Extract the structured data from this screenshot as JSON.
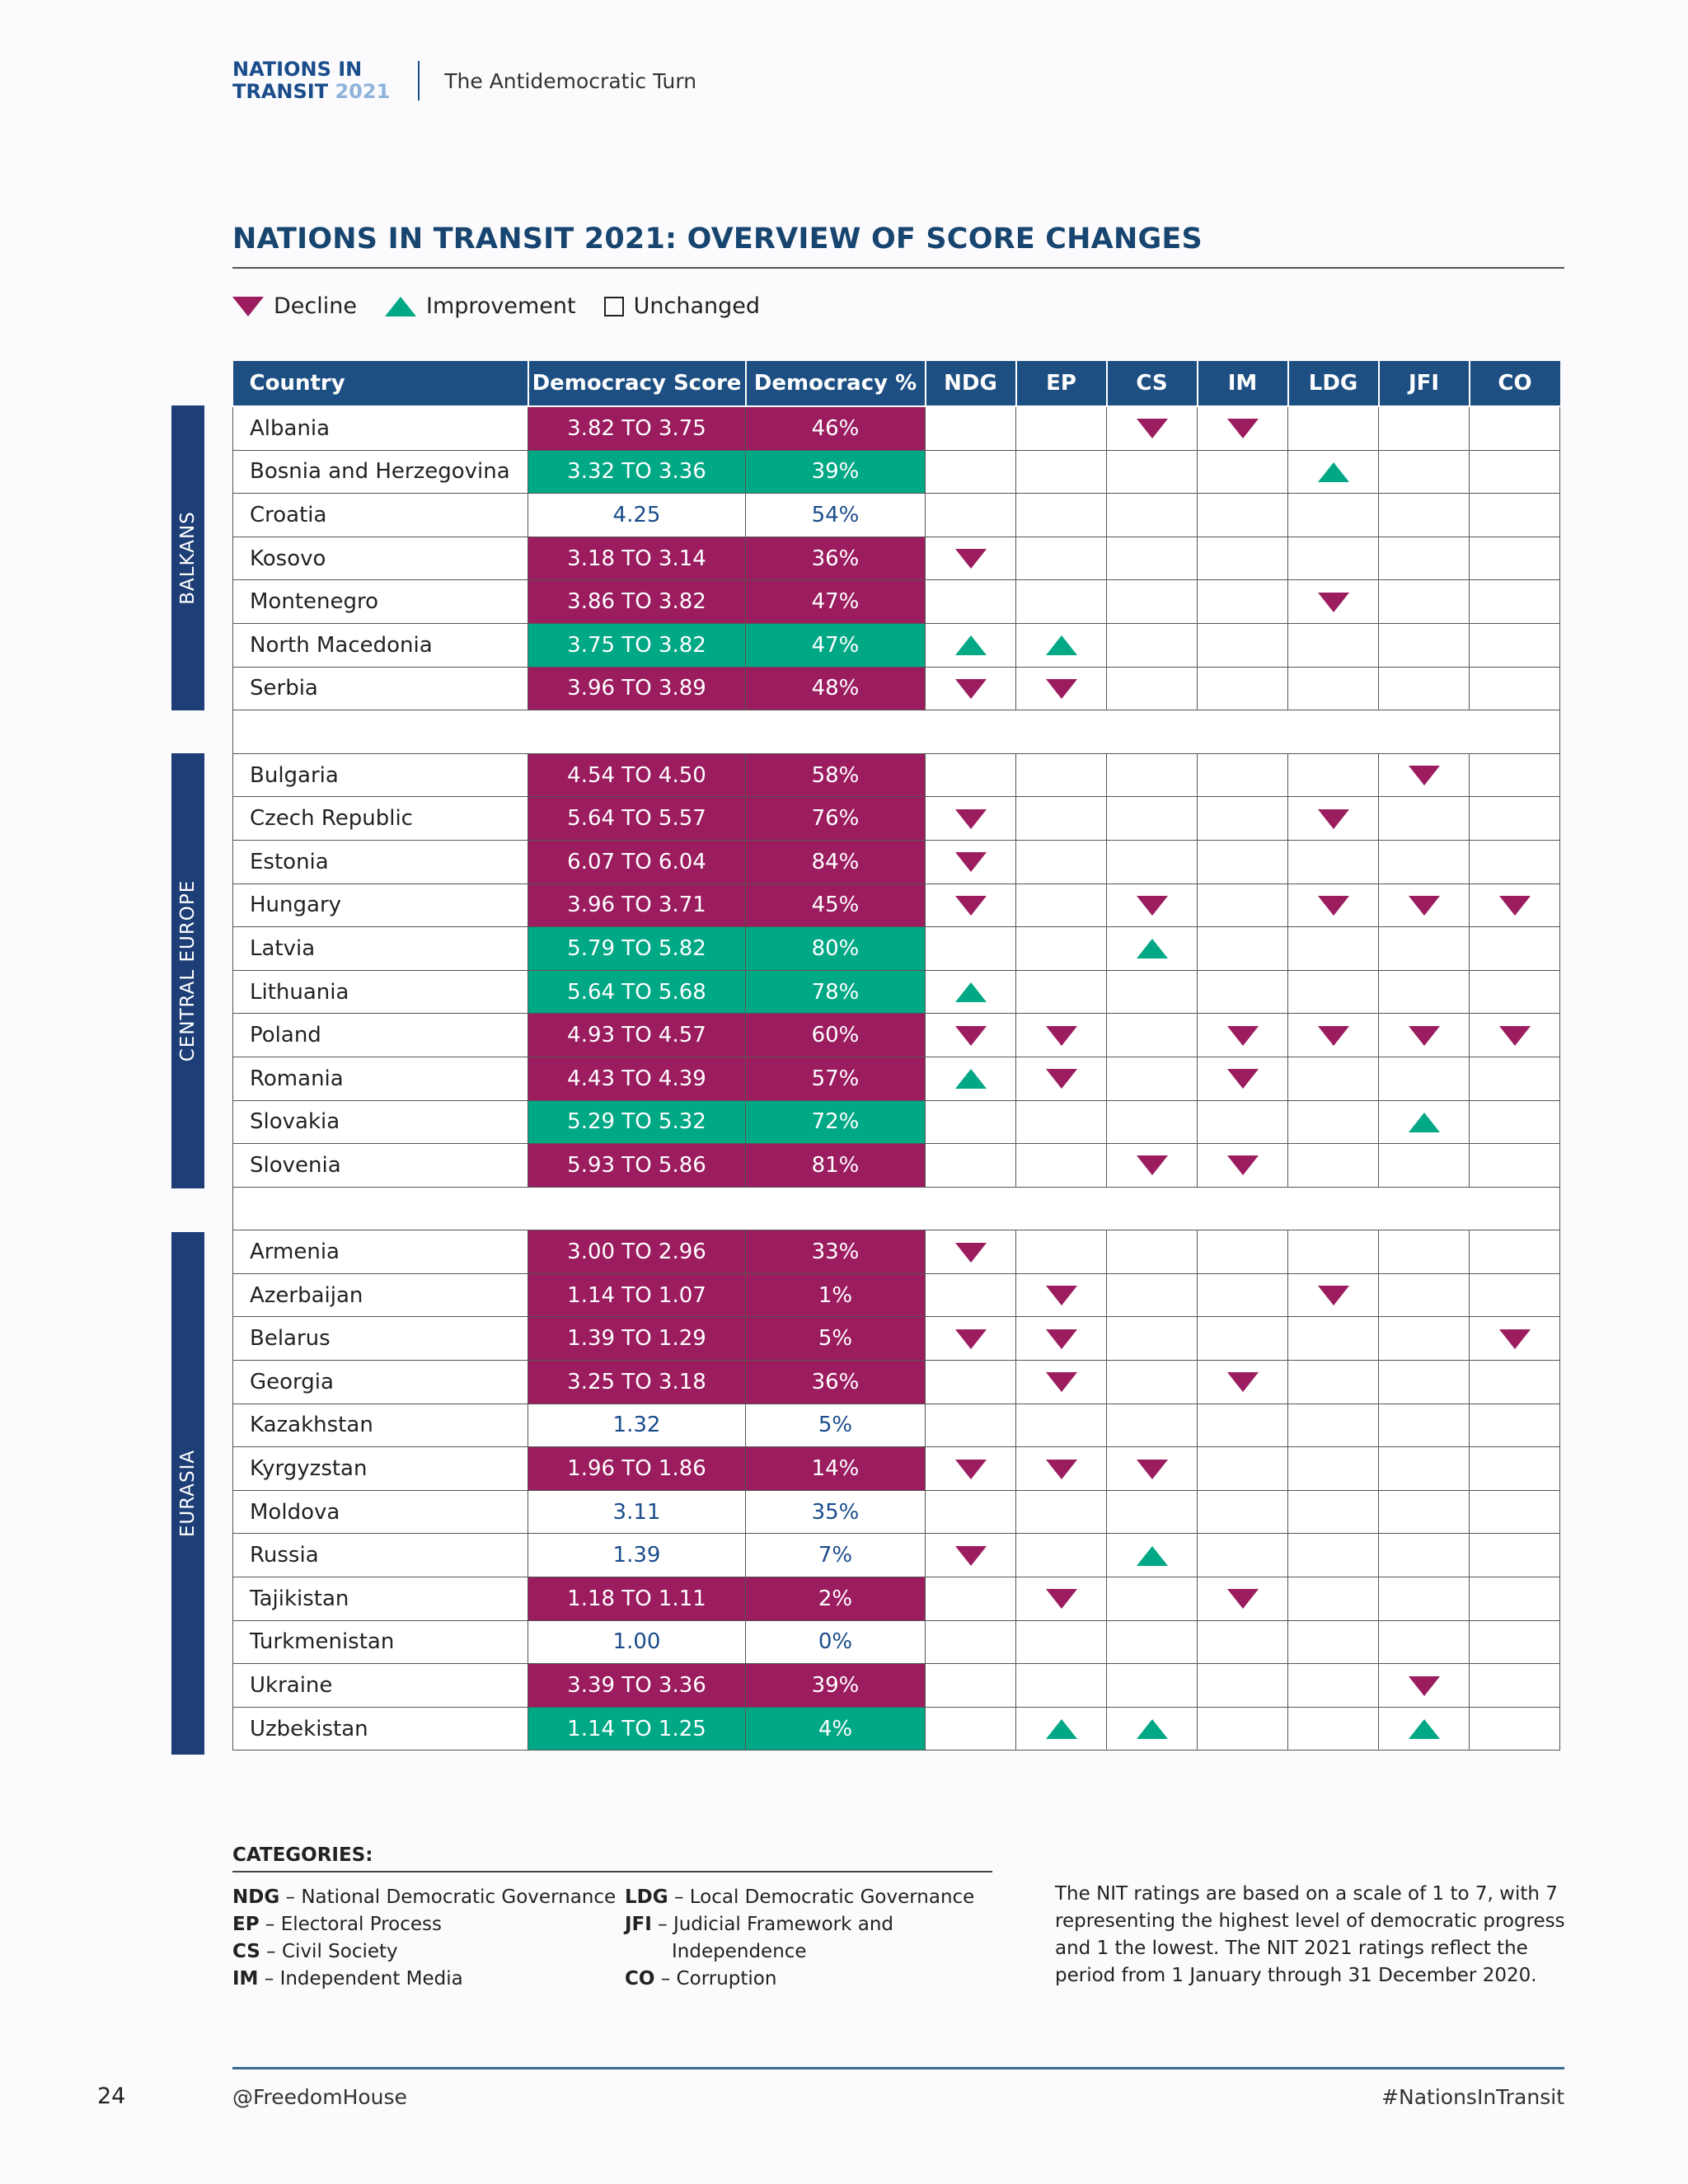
{
  "header": {
    "brand_line1": "NATIONS IN",
    "brand_line2": "TRANSIT",
    "brand_year": "2021",
    "subtitle": "The Antidemocratic Turn"
  },
  "title": "NATIONS IN TRANSIT 2021: OVERVIEW OF SCORE CHANGES",
  "legend": {
    "decline": "Decline",
    "improvement": "Improvement",
    "unchanged": "Unchanged"
  },
  "colors": {
    "decline": "#9b1c5f",
    "improvement": "#00a885",
    "header": "#1d4f82",
    "region": "#1d3e77"
  },
  "columns": [
    "Country",
    "Democracy Score",
    "Democracy %",
    "NDG",
    "EP",
    "CS",
    "IM",
    "LDG",
    "JFI",
    "CO"
  ],
  "regions": [
    {
      "name": "BALKANS",
      "rows": [
        {
          "country": "Albania",
          "score": "3.82 TO 3.75",
          "pct": "46%",
          "status": "decline",
          "marks": {
            "CS": "down",
            "IM": "down"
          }
        },
        {
          "country": "Bosnia and Herzegovina",
          "score": "3.32 TO 3.36",
          "pct": "39%",
          "status": "improve",
          "marks": {
            "LDG": "up"
          }
        },
        {
          "country": "Croatia",
          "score": "4.25",
          "pct": "54%",
          "status": "unchanged",
          "marks": {}
        },
        {
          "country": "Kosovo",
          "score": "3.18 TO 3.14",
          "pct": "36%",
          "status": "decline",
          "marks": {
            "NDG": "down"
          }
        },
        {
          "country": "Montenegro",
          "score": "3.86 TO 3.82",
          "pct": "47%",
          "status": "decline",
          "marks": {
            "LDG": "down"
          }
        },
        {
          "country": "North Macedonia",
          "score": "3.75 TO 3.82",
          "pct": "47%",
          "status": "improve",
          "marks": {
            "NDG": "up",
            "EP": "up"
          }
        },
        {
          "country": "Serbia",
          "score": "3.96 TO 3.89",
          "pct": "48%",
          "status": "decline",
          "marks": {
            "NDG": "down",
            "EP": "down"
          }
        }
      ]
    },
    {
      "name": "CENTRAL EUROPE",
      "rows": [
        {
          "country": "Bulgaria",
          "score": "4.54 TO 4.50",
          "pct": "58%",
          "status": "decline",
          "marks": {
            "JFI": "down"
          }
        },
        {
          "country": "Czech Republic",
          "score": "5.64 TO 5.57",
          "pct": "76%",
          "status": "decline",
          "marks": {
            "NDG": "down",
            "LDG": "down"
          }
        },
        {
          "country": "Estonia",
          "score": "6.07 TO 6.04",
          "pct": "84%",
          "status": "decline",
          "marks": {
            "NDG": "down"
          }
        },
        {
          "country": "Hungary",
          "score": "3.96 TO 3.71",
          "pct": "45%",
          "status": "decline",
          "marks": {
            "NDG": "down",
            "CS": "down",
            "LDG": "down",
            "JFI": "down",
            "CO": "down"
          }
        },
        {
          "country": "Latvia",
          "score": "5.79 TO 5.82",
          "pct": "80%",
          "status": "improve",
          "marks": {
            "CS": "up"
          }
        },
        {
          "country": "Lithuania",
          "score": "5.64 TO 5.68",
          "pct": "78%",
          "status": "improve",
          "marks": {
            "NDG": "up"
          }
        },
        {
          "country": "Poland",
          "score": "4.93 TO 4.57",
          "pct": "60%",
          "status": "decline",
          "marks": {
            "NDG": "down",
            "EP": "down",
            "IM": "down",
            "LDG": "down",
            "JFI": "down",
            "CO": "down"
          }
        },
        {
          "country": "Romania",
          "score": "4.43 TO 4.39",
          "pct": "57%",
          "status": "decline",
          "marks": {
            "NDG": "up",
            "EP": "down",
            "IM": "down"
          }
        },
        {
          "country": "Slovakia",
          "score": "5.29 TO 5.32",
          "pct": "72%",
          "status": "improve",
          "marks": {
            "JFI": "up"
          }
        },
        {
          "country": "Slovenia",
          "score": "5.93 TO 5.86",
          "pct": "81%",
          "status": "decline",
          "marks": {
            "CS": "down",
            "IM": "down"
          }
        }
      ]
    },
    {
      "name": "EURASIA",
      "rows": [
        {
          "country": "Armenia",
          "score": "3.00 TO 2.96",
          "pct": "33%",
          "status": "decline",
          "marks": {
            "NDG": "down"
          }
        },
        {
          "country": "Azerbaijan",
          "score": "1.14 TO 1.07",
          "pct": "1%",
          "status": "decline",
          "marks": {
            "EP": "down",
            "LDG": "down"
          }
        },
        {
          "country": "Belarus",
          "score": "1.39 TO 1.29",
          "pct": "5%",
          "status": "decline",
          "marks": {
            "NDG": "down",
            "EP": "down",
            "CO": "down"
          }
        },
        {
          "country": "Georgia",
          "score": "3.25 TO 3.18",
          "pct": "36%",
          "status": "decline",
          "marks": {
            "EP": "down",
            "IM": "down"
          }
        },
        {
          "country": "Kazakhstan",
          "score": "1.32",
          "pct": "5%",
          "status": "unchanged",
          "marks": {}
        },
        {
          "country": "Kyrgyzstan",
          "score": "1.96 TO 1.86",
          "pct": "14%",
          "status": "decline",
          "marks": {
            "NDG": "down",
            "EP": "down",
            "CS": "down"
          }
        },
        {
          "country": "Moldova",
          "score": "3.11",
          "pct": "35%",
          "status": "unchanged",
          "marks": {}
        },
        {
          "country": "Russia",
          "score": "1.39",
          "pct": "7%",
          "status": "unchanged",
          "marks": {
            "NDG": "down",
            "CS": "up"
          }
        },
        {
          "country": "Tajikistan",
          "score": "1.18 TO 1.11",
          "pct": "2%",
          "status": "decline",
          "marks": {
            "EP": "down",
            "IM": "down"
          }
        },
        {
          "country": "Turkmenistan",
          "score": "1.00",
          "pct": "0%",
          "status": "unchanged",
          "marks": {}
        },
        {
          "country": "Ukraine",
          "score": "3.39 TO 3.36",
          "pct": "39%",
          "status": "decline",
          "marks": {
            "JFI": "down"
          }
        },
        {
          "country": "Uzbekistan",
          "score": "1.14 TO 1.25",
          "pct": "4%",
          "status": "improve",
          "marks": {
            "EP": "up",
            "CS": "up",
            "JFI": "up"
          }
        }
      ]
    }
  ],
  "categories": {
    "title": "CATEGORIES:",
    "left": [
      {
        "abbr": "NDG",
        "text": " – National Democratic Governance"
      },
      {
        "abbr": "EP",
        "text": " – Electoral Process"
      },
      {
        "abbr": "CS",
        "text": " – Civil Society"
      },
      {
        "abbr": "IM",
        "text": " – Independent Media"
      }
    ],
    "right": [
      {
        "abbr": "LDG",
        "text": " – Local Democratic Governance"
      },
      {
        "abbr": "JFI",
        "text": " – Judicial Framework and"
      },
      {
        "abbr": "",
        "text": "Independence"
      },
      {
        "abbr": "CO",
        "text": " – Corruption"
      }
    ]
  },
  "note": "The NIT ratings are based on a scale of 1 to 7, with 7 representing the highest level of democratic progress and 1 the lowest. The NIT 2021 ratings reflect the period from 1 January through 31 December 2020.",
  "footer": {
    "page_number": "24",
    "left": "@FreedomHouse",
    "right": "#NationsInTransit"
  }
}
